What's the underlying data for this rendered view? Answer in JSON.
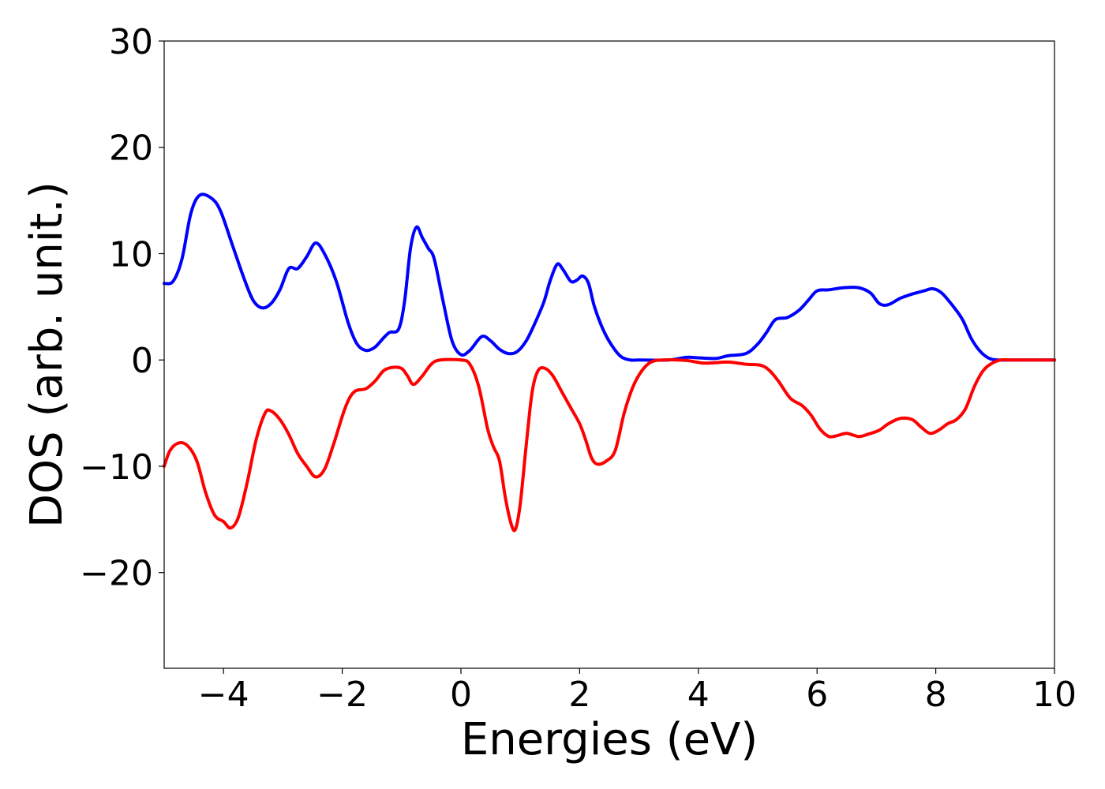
{
  "chart_data": {
    "type": "line",
    "title": "",
    "xlabel": "Energies (eV)",
    "ylabel": "DOS (arb. unit.)",
    "xlim": [
      -5,
      10
    ],
    "ylim": [
      -29,
      30
    ],
    "xticks": [
      -4,
      -2,
      0,
      2,
      4,
      6,
      8,
      10
    ],
    "xtick_labels": [
      "−4",
      "−2",
      "0",
      "2",
      "4",
      "6",
      "8",
      "10"
    ],
    "yticks": [
      -20,
      -10,
      0,
      10,
      20,
      30
    ],
    "ytick_labels": [
      "−20",
      "−10",
      "0",
      "10",
      "20",
      "30"
    ],
    "grid": false,
    "legend": "none",
    "series": [
      {
        "color": "#0000ff",
        "points": [
          [
            -5.0,
            7.2
          ],
          [
            -4.85,
            7.4
          ],
          [
            -4.7,
            9.5
          ],
          [
            -4.55,
            13.8
          ],
          [
            -4.4,
            15.5
          ],
          [
            -4.2,
            15.2
          ],
          [
            -4.05,
            14.0
          ],
          [
            -3.85,
            10.8
          ],
          [
            -3.65,
            7.6
          ],
          [
            -3.5,
            5.6
          ],
          [
            -3.35,
            4.9
          ],
          [
            -3.2,
            5.3
          ],
          [
            -3.05,
            6.6
          ],
          [
            -2.9,
            8.6
          ],
          [
            -2.75,
            8.6
          ],
          [
            -2.6,
            9.7
          ],
          [
            -2.45,
            11.0
          ],
          [
            -2.3,
            10.0
          ],
          [
            -2.1,
            7.4
          ],
          [
            -1.9,
            3.5
          ],
          [
            -1.75,
            1.5
          ],
          [
            -1.6,
            0.9
          ],
          [
            -1.45,
            1.2
          ],
          [
            -1.3,
            2.1
          ],
          [
            -1.2,
            2.6
          ],
          [
            -1.05,
            2.9
          ],
          [
            -0.95,
            5.5
          ],
          [
            -0.85,
            10.5
          ],
          [
            -0.75,
            12.5
          ],
          [
            -0.65,
            11.5
          ],
          [
            -0.55,
            10.5
          ],
          [
            -0.45,
            9.5
          ],
          [
            -0.3,
            5.5
          ],
          [
            -0.15,
            1.8
          ],
          [
            0.0,
            0.5
          ],
          [
            0.15,
            0.9
          ],
          [
            0.35,
            2.2
          ],
          [
            0.5,
            1.8
          ],
          [
            0.65,
            1.0
          ],
          [
            0.8,
            0.6
          ],
          [
            0.95,
            0.8
          ],
          [
            1.1,
            1.8
          ],
          [
            1.25,
            3.5
          ],
          [
            1.4,
            5.5
          ],
          [
            1.5,
            7.4
          ],
          [
            1.62,
            9.0
          ],
          [
            1.72,
            8.5
          ],
          [
            1.85,
            7.4
          ],
          [
            1.95,
            7.5
          ],
          [
            2.05,
            7.9
          ],
          [
            2.15,
            7.2
          ],
          [
            2.25,
            5.0
          ],
          [
            2.4,
            2.8
          ],
          [
            2.55,
            1.3
          ],
          [
            2.7,
            0.3
          ],
          [
            2.85,
            0.0
          ],
          [
            3.0,
            0.0
          ],
          [
            3.5,
            0.0
          ],
          [
            3.8,
            0.25
          ],
          [
            4.0,
            0.2
          ],
          [
            4.3,
            0.15
          ],
          [
            4.5,
            0.4
          ],
          [
            4.8,
            0.6
          ],
          [
            5.0,
            1.5
          ],
          [
            5.15,
            2.6
          ],
          [
            5.3,
            3.8
          ],
          [
            5.5,
            4.0
          ],
          [
            5.7,
            4.7
          ],
          [
            5.85,
            5.6
          ],
          [
            6.0,
            6.5
          ],
          [
            6.2,
            6.6
          ],
          [
            6.45,
            6.8
          ],
          [
            6.7,
            6.8
          ],
          [
            6.9,
            6.3
          ],
          [
            7.05,
            5.3
          ],
          [
            7.2,
            5.2
          ],
          [
            7.4,
            5.8
          ],
          [
            7.6,
            6.2
          ],
          [
            7.8,
            6.5
          ],
          [
            7.95,
            6.7
          ],
          [
            8.1,
            6.3
          ],
          [
            8.3,
            5.0
          ],
          [
            8.45,
            3.8
          ],
          [
            8.6,
            2.0
          ],
          [
            8.75,
            0.8
          ],
          [
            8.9,
            0.15
          ],
          [
            9.05,
            0.0
          ],
          [
            9.3,
            0.0
          ],
          [
            10.0,
            0.0
          ]
        ]
      },
      {
        "color": "#ff0000",
        "points": [
          [
            -5.0,
            -10.0
          ],
          [
            -4.9,
            -8.5
          ],
          [
            -4.75,
            -7.8
          ],
          [
            -4.6,
            -8.1
          ],
          [
            -4.45,
            -9.5
          ],
          [
            -4.3,
            -12.5
          ],
          [
            -4.15,
            -14.6
          ],
          [
            -4.0,
            -15.2
          ],
          [
            -3.88,
            -15.8
          ],
          [
            -3.75,
            -14.8
          ],
          [
            -3.6,
            -11.5
          ],
          [
            -3.45,
            -7.5
          ],
          [
            -3.3,
            -5.0
          ],
          [
            -3.2,
            -4.8
          ],
          [
            -3.05,
            -5.6
          ],
          [
            -2.9,
            -7.0
          ],
          [
            -2.75,
            -8.8
          ],
          [
            -2.6,
            -10.0
          ],
          [
            -2.45,
            -11.0
          ],
          [
            -2.3,
            -10.3
          ],
          [
            -2.15,
            -8.0
          ],
          [
            -1.95,
            -4.5
          ],
          [
            -1.8,
            -3.0
          ],
          [
            -1.6,
            -2.7
          ],
          [
            -1.45,
            -2.0
          ],
          [
            -1.3,
            -1.0
          ],
          [
            -1.15,
            -0.7
          ],
          [
            -1.0,
            -0.8
          ],
          [
            -0.9,
            -1.5
          ],
          [
            -0.8,
            -2.3
          ],
          [
            -0.65,
            -1.5
          ],
          [
            -0.5,
            -0.4
          ],
          [
            -0.35,
            0.0
          ],
          [
            0.0,
            0.0
          ],
          [
            0.15,
            -0.4
          ],
          [
            0.3,
            -2.5
          ],
          [
            0.45,
            -6.5
          ],
          [
            0.55,
            -8.2
          ],
          [
            0.65,
            -9.5
          ],
          [
            0.75,
            -13.0
          ],
          [
            0.85,
            -15.5
          ],
          [
            0.92,
            -15.9
          ],
          [
            1.0,
            -13.5
          ],
          [
            1.1,
            -8.0
          ],
          [
            1.2,
            -3.0
          ],
          [
            1.3,
            -1.0
          ],
          [
            1.42,
            -0.8
          ],
          [
            1.55,
            -1.5
          ],
          [
            1.7,
            -3.0
          ],
          [
            1.85,
            -4.5
          ],
          [
            2.0,
            -6.0
          ],
          [
            2.1,
            -7.5
          ],
          [
            2.2,
            -9.2
          ],
          [
            2.3,
            -9.8
          ],
          [
            2.45,
            -9.5
          ],
          [
            2.6,
            -8.5
          ],
          [
            2.75,
            -5.0
          ],
          [
            2.9,
            -2.5
          ],
          [
            3.05,
            -1.0
          ],
          [
            3.2,
            -0.2
          ],
          [
            3.4,
            0.0
          ],
          [
            3.8,
            -0.05
          ],
          [
            4.1,
            -0.3
          ],
          [
            4.5,
            -0.2
          ],
          [
            4.8,
            -0.4
          ],
          [
            5.05,
            -0.5
          ],
          [
            5.2,
            -1.0
          ],
          [
            5.35,
            -2.0
          ],
          [
            5.55,
            -3.6
          ],
          [
            5.75,
            -4.3
          ],
          [
            5.9,
            -5.2
          ],
          [
            6.05,
            -6.5
          ],
          [
            6.2,
            -7.2
          ],
          [
            6.35,
            -7.1
          ],
          [
            6.5,
            -6.9
          ],
          [
            6.7,
            -7.2
          ],
          [
            6.85,
            -7.0
          ],
          [
            7.05,
            -6.6
          ],
          [
            7.2,
            -6.0
          ],
          [
            7.4,
            -5.5
          ],
          [
            7.6,
            -5.6
          ],
          [
            7.75,
            -6.3
          ],
          [
            7.9,
            -6.9
          ],
          [
            8.05,
            -6.6
          ],
          [
            8.2,
            -6.0
          ],
          [
            8.35,
            -5.6
          ],
          [
            8.5,
            -4.6
          ],
          [
            8.65,
            -2.5
          ],
          [
            8.8,
            -1.0
          ],
          [
            8.95,
            -0.3
          ],
          [
            9.1,
            0.0
          ],
          [
            9.3,
            0.0
          ],
          [
            10.0,
            0.0
          ]
        ]
      }
    ]
  }
}
